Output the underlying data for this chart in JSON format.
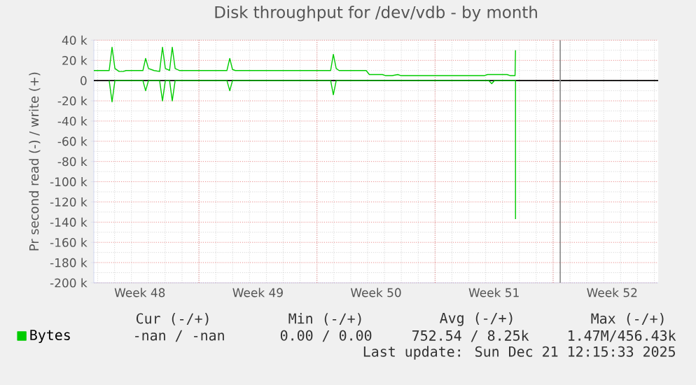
{
  "chart_data": {
    "type": "line",
    "title": "Disk throughput for /dev/vdb - by month",
    "ylabel": "Pr second read (-) / write (+)",
    "x": [
      "2025-11-24T18:29",
      "2025-11-25T16:19",
      "2025-11-25T20:24",
      "2025-11-26T00:29",
      "2025-11-26T06:29",
      "2025-11-26T12:14",
      "2025-11-26T16:19",
      "2025-11-27T16:19",
      "2025-11-27T20:10",
      "2025-11-28T00:14",
      "2025-11-28T08:10",
      "2025-11-28T16:05",
      "2025-11-28T20:10",
      "2025-11-29T00:14",
      "2025-11-29T06:14",
      "2025-11-29T10:05",
      "2025-11-29T14:10",
      "2025-11-29T20:10",
      "2025-12-02T15:50",
      "2025-12-02T19:55",
      "2025-12-02T23:46",
      "2025-12-03T03:50",
      "2025-12-08T19:26",
      "2025-12-08T23:17",
      "2025-12-09T03:22",
      "2025-12-09T07:26",
      "2025-12-10T22:00",
      "2025-12-11T02:30",
      "2025-12-11T21:07",
      "2025-12-12T01:12",
      "2025-12-12T11:02",
      "2025-12-12T18:58",
      "2025-12-12T23:02",
      "2025-12-16T14:38",
      "2025-12-17T22:34",
      "2025-12-18T02:38",
      "2025-12-19T06:29",
      "2025-12-19T10:34",
      "2025-12-19T17:50",
      "2025-12-19T18:29"
    ],
    "series": [
      {
        "name": "Bytes",
        "color": "#00cc00",
        "values": [
          10000,
          10000,
          33000,
          12000,
          9000,
          9000,
          10000,
          10000,
          22000,
          12000,
          10000,
          9000,
          33000,
          12000,
          10000,
          33000,
          12000,
          10000,
          10000,
          22000,
          11000,
          10000,
          10000,
          26000,
          12000,
          10000,
          10000,
          6000,
          6000,
          5000,
          5000,
          6000,
          5000,
          5000,
          5000,
          6000,
          6000,
          5000,
          5000,
          30000
        ]
      },
      {
        "color": "#00cc00",
        "x": [
          "2025-11-25T16:19",
          "2025-11-25T20:24",
          "2025-11-26T00:29",
          "2025-11-27T16:19",
          "2025-11-27T20:10",
          "2025-11-28T00:14",
          "2025-11-28T16:05",
          "2025-11-28T20:10",
          "2025-11-29T00:14",
          "2025-11-29T06:14",
          "2025-11-29T10:05",
          "2025-11-29T14:10",
          "2025-12-02T15:50",
          "2025-12-02T19:55",
          "2025-12-02T23:46",
          "2025-12-08T19:26",
          "2025-12-08T23:17",
          "2025-12-09T03:22",
          "2025-12-18T04:34",
          "2025-12-18T08:38",
          "2025-12-18T12:29",
          "2025-12-19T18:29",
          "2025-12-19T18:29"
        ],
        "values": [
          0,
          -21000,
          0,
          0,
          -10000,
          0,
          0,
          -20000,
          0,
          0,
          -20000,
          0,
          0,
          -10000,
          0,
          0,
          -14000,
          0,
          0,
          -3000,
          0,
          0,
          -137000
        ]
      }
    ],
    "xlim": [
      "2025-11-24T18:29",
      "2025-12-28T05:31"
    ],
    "xticks": [
      {
        "value": "2025-11-27T12:00",
        "label": "Week 48"
      },
      {
        "value": "2025-12-01",
        "label": null
      },
      {
        "value": "2025-12-04T12:00",
        "label": "Week 49"
      },
      {
        "value": "2025-12-08",
        "label": null
      },
      {
        "value": "2025-12-11T12:00",
        "label": "Week 50"
      },
      {
        "value": "2025-12-15",
        "label": null
      },
      {
        "value": "2025-12-18T12:00",
        "label": "Week 51"
      },
      {
        "value": "2025-12-22",
        "label": null
      },
      {
        "value": "2025-12-25T12:00",
        "label": "Week 52"
      }
    ],
    "ylim": [
      -200000,
      40000
    ],
    "yticks": [
      {
        "value": 40000,
        "label": "40 k"
      },
      {
        "value": 20000,
        "label": "20 k"
      },
      0,
      {
        "value": -20000,
        "label": "-20 k"
      },
      {
        "value": -40000,
        "label": "-40 k"
      },
      {
        "value": -60000,
        "label": "-60 k"
      },
      {
        "value": -80000,
        "label": "-80 k"
      },
      {
        "value": -100000,
        "label": "-100 k"
      },
      {
        "value": -120000,
        "label": "-120 k"
      },
      {
        "value": -140000,
        "label": "-140 k"
      },
      {
        "value": -160000,
        "label": "-160 k"
      },
      {
        "value": -180000,
        "label": "-180 k"
      },
      {
        "value": -200000,
        "label": "-200 k"
      }
    ],
    "ref_lines": [
      {
        "axis": "y",
        "value": 0,
        "color": "#000000"
      },
      {
        "axis": "x",
        "value": "2025-12-22T10:05",
        "color": "#888888"
      }
    ],
    "grid": true,
    "legend": "bottom",
    "marker": "none",
    "line_style": "solid",
    "annotations": [
      "Cur (-/+)",
      "Min (-/+)",
      "Avg (-/+)",
      "Max (-/+)",
      "-nan / -nan",
      "0.00 / 0.00",
      "752.54 / 8.25k",
      "1.47M/456.43k",
      "Last update: Sun Dec 21 12:15:33 2025"
    ]
  }
}
